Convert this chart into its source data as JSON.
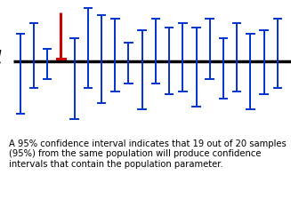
{
  "mu_y": 0,
  "intervals": [
    {
      "x": 1,
      "lo": -3.5,
      "hi": 1.8,
      "red": false
    },
    {
      "x": 2,
      "lo": -1.8,
      "hi": 2.5,
      "red": false
    },
    {
      "x": 3,
      "lo": -1.2,
      "hi": 0.8,
      "red": false
    },
    {
      "x": 4,
      "lo": 0.15,
      "hi": 3.2,
      "red": true
    },
    {
      "x": 5,
      "lo": -3.8,
      "hi": 1.5,
      "red": false
    },
    {
      "x": 6,
      "lo": -1.8,
      "hi": 3.5,
      "red": false
    },
    {
      "x": 7,
      "lo": -2.8,
      "hi": 3.0,
      "red": false
    },
    {
      "x": 8,
      "lo": -2.0,
      "hi": 2.8,
      "red": false
    },
    {
      "x": 9,
      "lo": -1.5,
      "hi": 1.2,
      "red": false
    },
    {
      "x": 10,
      "lo": -3.2,
      "hi": 2.0,
      "red": false
    },
    {
      "x": 11,
      "lo": -1.5,
      "hi": 2.8,
      "red": false
    },
    {
      "x": 12,
      "lo": -2.2,
      "hi": 2.2,
      "red": false
    },
    {
      "x": 13,
      "lo": -2.0,
      "hi": 2.5,
      "red": false
    },
    {
      "x": 14,
      "lo": -3.0,
      "hi": 2.2,
      "red": false
    },
    {
      "x": 15,
      "lo": -1.2,
      "hi": 2.8,
      "red": false
    },
    {
      "x": 16,
      "lo": -2.5,
      "hi": 1.5,
      "red": false
    },
    {
      "x": 17,
      "lo": -2.0,
      "hi": 2.5,
      "red": false
    },
    {
      "x": 18,
      "lo": -3.2,
      "hi": 1.8,
      "red": false
    },
    {
      "x": 19,
      "lo": -2.2,
      "hi": 2.0,
      "red": false
    },
    {
      "x": 20,
      "lo": -1.8,
      "hi": 2.8,
      "red": false
    }
  ],
  "blue_color": "#0033cc",
  "red_color": "#cc0000",
  "line_color": "#000000",
  "mu_label": "$\\mu$",
  "mu_fontsize": 20,
  "caption": "A 95% confidence interval indicates that 19 out of 20 samples\n(95%) from the same population will produce confidence\nintervals that contain the population parameter.",
  "caption_fontsize": 7.2,
  "ylim": [
    -4.5,
    4.0
  ],
  "xlim": [
    -0.5,
    21.0
  ],
  "linewidth": 1.4,
  "red_linewidth": 2.2,
  "tick_halfwidth": 0.28
}
